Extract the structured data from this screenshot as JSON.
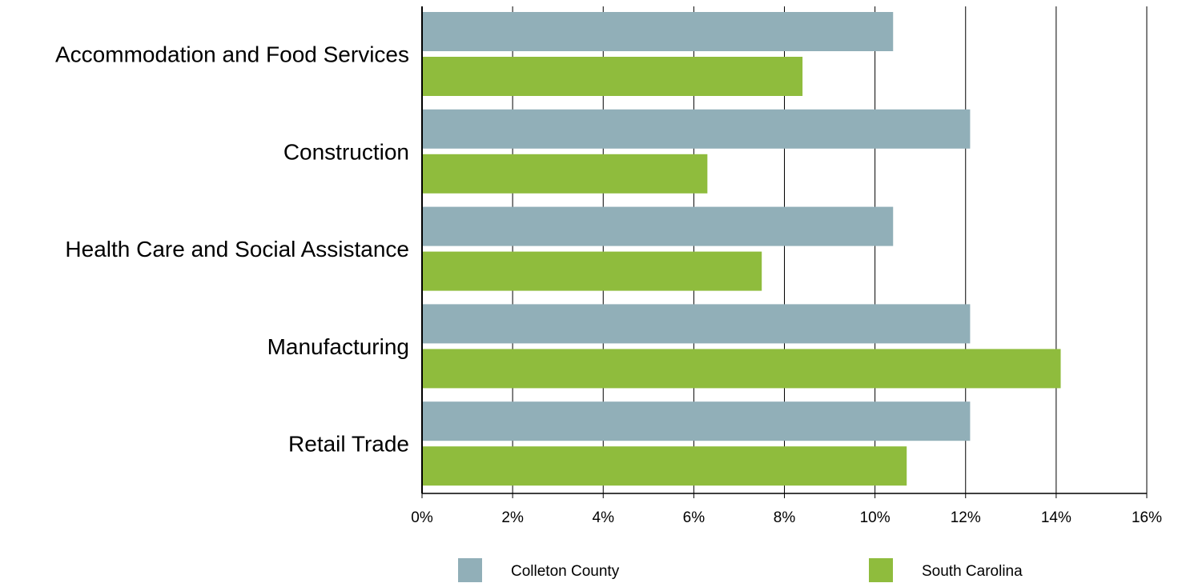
{
  "chart_data": {
    "type": "bar",
    "orientation": "horizontal",
    "categories": [
      "Accommodation and Food Services",
      "Construction",
      "Health Care and Social Assistance",
      "Manufacturing",
      "Retail Trade"
    ],
    "series": [
      {
        "name": "Colleton County",
        "color": "#91afb8",
        "values": [
          10.4,
          12.1,
          10.4,
          12.1,
          12.1
        ]
      },
      {
        "name": "South Carolina",
        "color": "#8fbc3d",
        "values": [
          8.4,
          6.3,
          7.5,
          14.1,
          10.7
        ]
      }
    ],
    "xlim": [
      0,
      16
    ],
    "xticks": [
      0,
      2,
      4,
      6,
      8,
      10,
      12,
      14,
      16
    ],
    "xtick_labels": [
      "0%",
      "2%",
      "4%",
      "6%",
      "8%",
      "10%",
      "12%",
      "14%",
      "16%"
    ],
    "grid": "vertical",
    "legend_position": "bottom",
    "title": "",
    "xlabel": "",
    "ylabel": ""
  }
}
